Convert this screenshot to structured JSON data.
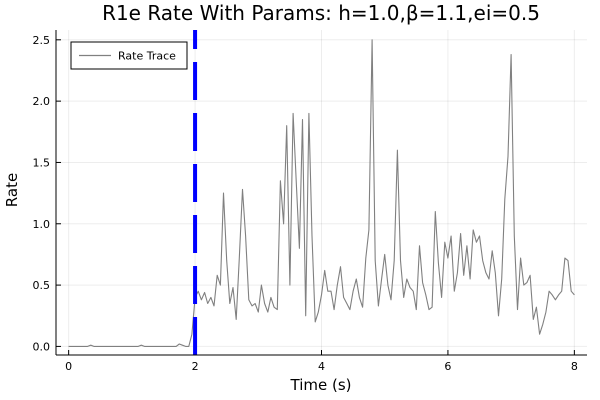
{
  "chart_data": {
    "type": "line",
    "title": "R1e Rate With Params: h=1.0,β=1.1,ei=0.5",
    "xlabel": "Time (s)",
    "ylabel": "Rate",
    "xlim": [
      -0.2,
      8.2
    ],
    "ylim": [
      -0.07,
      2.58
    ],
    "xticks": [
      0,
      2,
      4,
      6,
      8
    ],
    "xtick_labels": [
      "0",
      "2",
      "4",
      "6",
      "8"
    ],
    "yticks": [
      0.0,
      0.5,
      1.0,
      1.5,
      2.0,
      2.5
    ],
    "ytick_labels": [
      "0.0",
      "0.5",
      "1.0",
      "1.5",
      "2.0",
      "2.5"
    ],
    "grid": true,
    "legend_position": "top-left",
    "series": [
      {
        "name": "Rate Trace",
        "color": "#808080",
        "x": [
          0.0,
          0.3,
          0.35,
          0.4,
          0.8,
          1.1,
          1.15,
          1.2,
          1.7,
          1.75,
          1.8,
          1.85,
          1.9,
          1.95,
          2.0,
          2.05,
          2.1,
          2.15,
          2.2,
          2.25,
          2.3,
          2.35,
          2.4,
          2.45,
          2.5,
          2.55,
          2.6,
          2.65,
          2.7,
          2.75,
          2.8,
          2.85,
          2.9,
          2.95,
          3.0,
          3.05,
          3.1,
          3.15,
          3.2,
          3.25,
          3.3,
          3.35,
          3.4,
          3.45,
          3.5,
          3.55,
          3.6,
          3.65,
          3.7,
          3.75,
          3.8,
          3.85,
          3.9,
          3.95,
          4.0,
          4.05,
          4.1,
          4.15,
          4.2,
          4.25,
          4.3,
          4.35,
          4.4,
          4.45,
          4.5,
          4.55,
          4.6,
          4.65,
          4.7,
          4.75,
          4.8,
          4.85,
          4.9,
          4.95,
          5.0,
          5.05,
          5.1,
          5.15,
          5.2,
          5.25,
          5.3,
          5.35,
          5.4,
          5.45,
          5.5,
          5.55,
          5.6,
          5.65,
          5.7,
          5.75,
          5.8,
          5.85,
          5.9,
          5.95,
          6.0,
          6.05,
          6.1,
          6.15,
          6.2,
          6.25,
          6.3,
          6.35,
          6.4,
          6.45,
          6.5,
          6.55,
          6.6,
          6.65,
          6.7,
          6.75,
          6.8,
          6.85,
          6.9,
          6.95,
          7.0,
          7.05,
          7.1,
          7.15,
          7.2,
          7.25,
          7.3,
          7.35,
          7.4,
          7.45,
          7.5,
          7.55,
          7.6,
          7.65,
          7.7,
          7.75,
          7.8,
          7.85,
          7.9,
          7.95,
          8.0
        ],
        "y": [
          0.0,
          0.0,
          0.01,
          0.0,
          0.0,
          0.0,
          0.01,
          0.0,
          0.0,
          0.02,
          0.01,
          0.0,
          0.0,
          0.1,
          0.4,
          0.45,
          0.38,
          0.44,
          0.35,
          0.4,
          0.33,
          0.58,
          0.5,
          1.25,
          0.7,
          0.35,
          0.48,
          0.22,
          0.72,
          1.28,
          0.9,
          0.38,
          0.33,
          0.35,
          0.28,
          0.5,
          0.35,
          0.28,
          0.4,
          0.32,
          0.3,
          1.35,
          1.0,
          1.8,
          0.5,
          1.9,
          1.35,
          0.8,
          1.85,
          0.25,
          1.9,
          0.9,
          0.2,
          0.28,
          0.42,
          0.62,
          0.45,
          0.45,
          0.3,
          0.5,
          0.65,
          0.4,
          0.35,
          0.3,
          0.45,
          0.55,
          0.4,
          0.32,
          0.72,
          0.95,
          2.5,
          0.7,
          0.33,
          0.55,
          0.75,
          0.5,
          0.38,
          0.7,
          1.6,
          0.7,
          0.4,
          0.55,
          0.48,
          0.45,
          0.3,
          0.82,
          0.52,
          0.42,
          0.3,
          0.32,
          1.1,
          0.68,
          0.4,
          0.85,
          0.72,
          0.9,
          0.45,
          0.6,
          0.92,
          0.58,
          0.82,
          0.55,
          0.95,
          0.85,
          0.9,
          0.7,
          0.6,
          0.55,
          0.78,
          0.6,
          0.25,
          0.55,
          1.2,
          1.55,
          2.38,
          0.9,
          0.3,
          0.72,
          0.5,
          0.52,
          0.58,
          0.22,
          0.32,
          0.1,
          0.18,
          0.28,
          0.45,
          0.42,
          0.38,
          0.42,
          0.45,
          0.72,
          0.7,
          0.45,
          0.42
        ]
      }
    ],
    "annotations": [
      {
        "kind": "vline",
        "x": 2.0,
        "color": "#0000ff",
        "style": "dashed"
      }
    ]
  }
}
